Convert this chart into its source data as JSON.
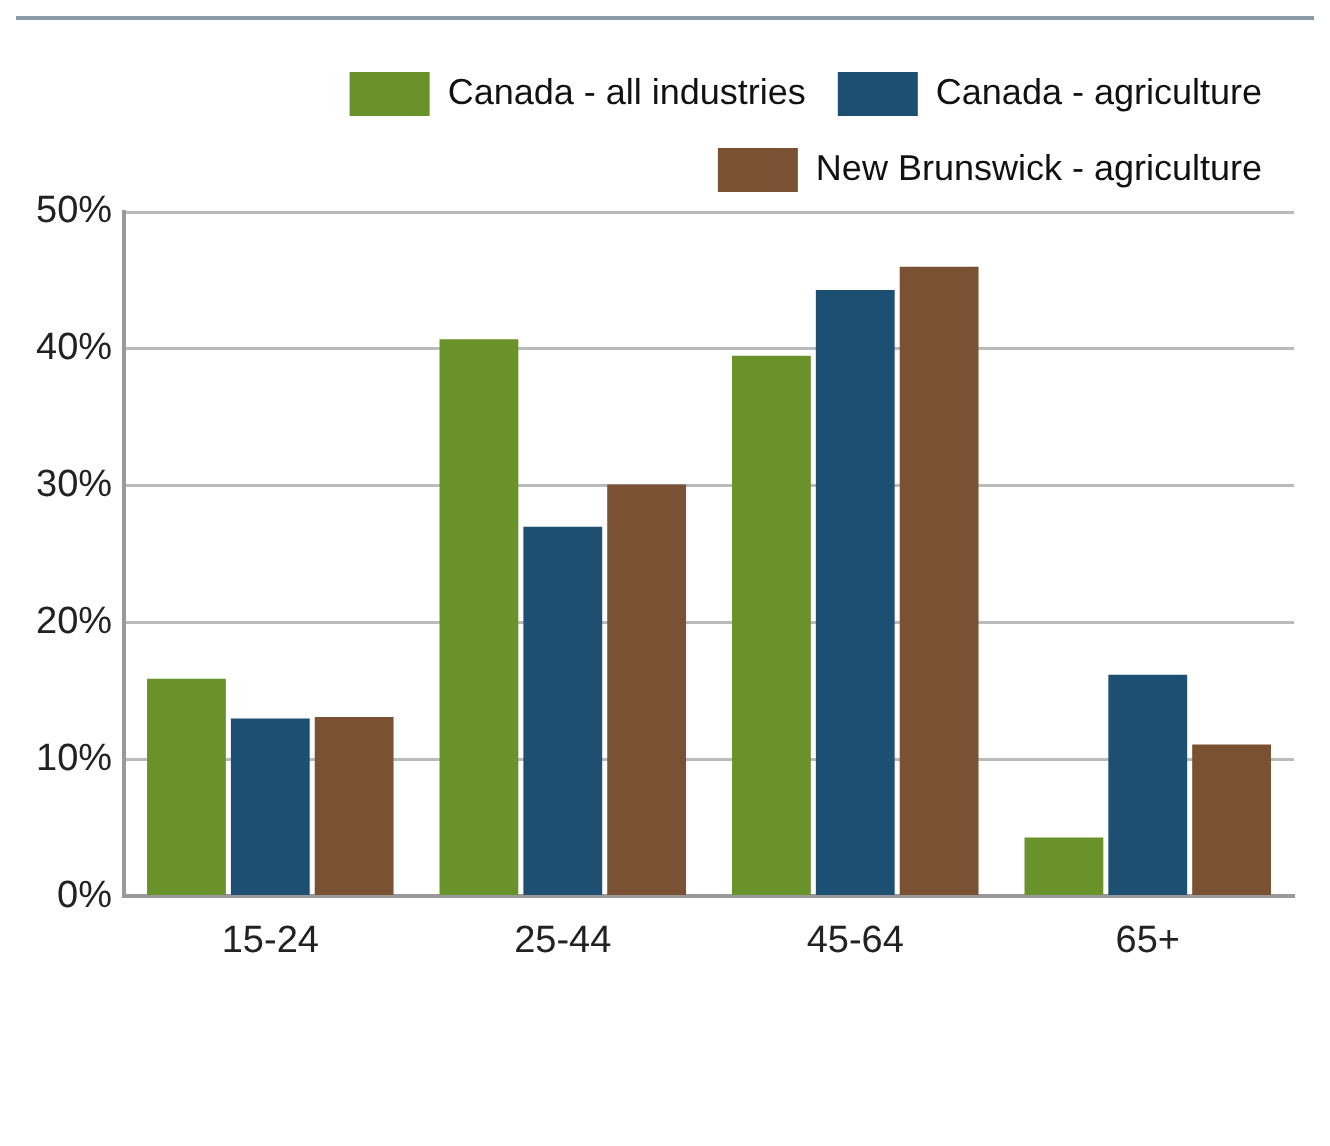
{
  "chart_data": {
    "type": "bar",
    "categories": [
      "15-24",
      "25-44",
      "45-64",
      "65+"
    ],
    "series": [
      {
        "name": "Canada - all industries",
        "color": "#6a922a",
        "values": [
          15.9,
          40.7,
          39.5,
          4.3
        ]
      },
      {
        "name": "Canada - agriculture",
        "color": "#1d4f73",
        "values": [
          13.0,
          27.0,
          44.3,
          16.2
        ]
      },
      {
        "name": "New Brunswick - agriculture",
        "color": "#7a5233",
        "values": [
          13.1,
          30.1,
          46.0,
          11.1
        ]
      }
    ],
    "ylim": [
      0,
      50
    ],
    "yticks": [
      {
        "value": 0,
        "label": "0%"
      },
      {
        "value": 10,
        "label": "10%"
      },
      {
        "value": 20,
        "label": "20%"
      },
      {
        "value": 30,
        "label": "30%"
      },
      {
        "value": 40,
        "label": "40%"
      },
      {
        "value": 50,
        "label": "50%"
      }
    ],
    "grid": "y",
    "legend": "top right"
  }
}
